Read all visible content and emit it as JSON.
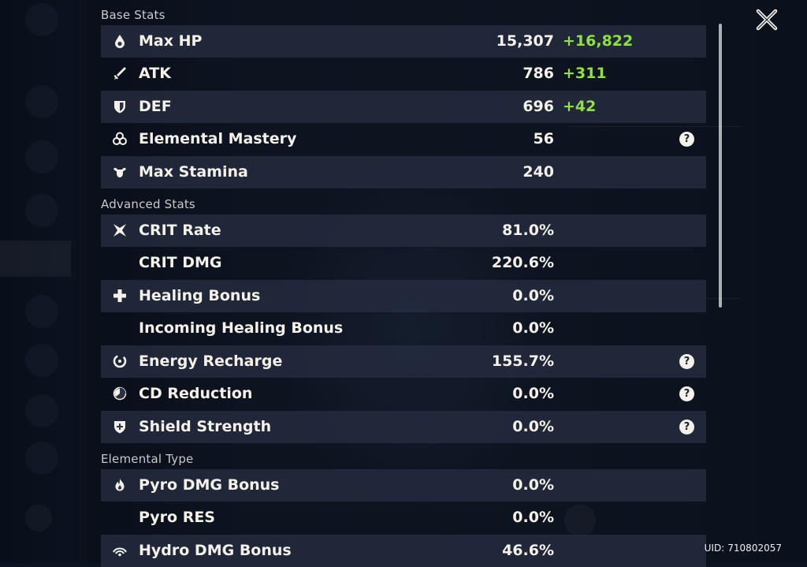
{
  "sections": {
    "base": "Base Stats",
    "advanced": "Advanced Stats",
    "elemental": "Elemental Type"
  },
  "base_stats": [
    {
      "label": "Max HP",
      "value": "15,307",
      "bonus": "+16,822",
      "icon": "hp-drop-icon"
    },
    {
      "label": "ATK",
      "value": "786",
      "bonus": "+311",
      "icon": "sword-icon"
    },
    {
      "label": "DEF",
      "value": "696",
      "bonus": "+42",
      "icon": "shield-icon"
    },
    {
      "label": "Elemental Mastery",
      "value": "56",
      "help": "?",
      "icon": "mastery-icon"
    },
    {
      "label": "Max Stamina",
      "value": "240",
      "icon": "stamina-icon"
    }
  ],
  "advanced_stats": [
    {
      "label": "CRIT Rate",
      "value": "81.0%",
      "icon": "crit-icon"
    },
    {
      "label": "CRIT DMG",
      "value": "220.6%"
    },
    {
      "label": "Healing Bonus",
      "value": "0.0%",
      "icon": "cross-icon"
    },
    {
      "label": "Incoming Healing Bonus",
      "value": "0.0%"
    },
    {
      "label": "Energy Recharge",
      "value": "155.7%",
      "help": "?",
      "icon": "energy-icon"
    },
    {
      "label": "CD Reduction",
      "value": "0.0%",
      "help": "?",
      "icon": "cooldown-icon"
    },
    {
      "label": "Shield Strength",
      "value": "0.0%",
      "help": "?",
      "icon": "shield-strength-icon"
    }
  ],
  "elemental_stats": [
    {
      "label": "Pyro DMG Bonus",
      "value": "0.0%",
      "icon": "pyro-icon"
    },
    {
      "label": "Pyro RES",
      "value": "0.0%"
    },
    {
      "label": "Hydro DMG Bonus",
      "value": "46.6%",
      "icon": "hydro-icon"
    }
  ],
  "uid": {
    "label": "UID:",
    "value": "710802057"
  },
  "close_icon": "close-icon",
  "colors": {
    "bonus": "#8fe23e",
    "row_shade": "#242c40",
    "text": "#f4f1e8",
    "section": "#c9c9c9"
  }
}
